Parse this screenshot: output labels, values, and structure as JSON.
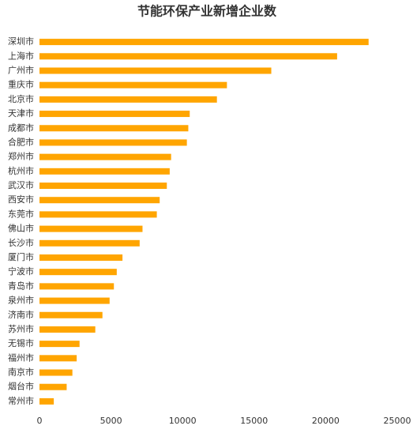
{
  "chart_data": {
    "type": "barh",
    "title": "节能环保产业新增企业数",
    "categories": [
      "深圳市",
      "上海市",
      "广州市",
      "重庆市",
      "北京市",
      "天津市",
      "成都市",
      "合肥市",
      "郑州市",
      "杭州市",
      "武汉市",
      "西安市",
      "东莞市",
      "佛山市",
      "长沙市",
      "厦门市",
      "宁波市",
      "青岛市",
      "泉州市",
      "济南市",
      "苏州市",
      "无锡市",
      "福州市",
      "南京市",
      "烟台市",
      "常州市"
    ],
    "values": [
      23000,
      20800,
      16200,
      13100,
      12400,
      10500,
      10400,
      10300,
      9200,
      9100,
      8900,
      8400,
      8200,
      7200,
      7000,
      5800,
      5400,
      5200,
      4900,
      4400,
      3900,
      2800,
      2600,
      2300,
      1900,
      1000
    ],
    "color": "#ffa500",
    "xlim": [
      0,
      25000
    ],
    "xticks": [
      0,
      5000,
      10000,
      15000,
      20000,
      25000
    ],
    "grid": false
  }
}
